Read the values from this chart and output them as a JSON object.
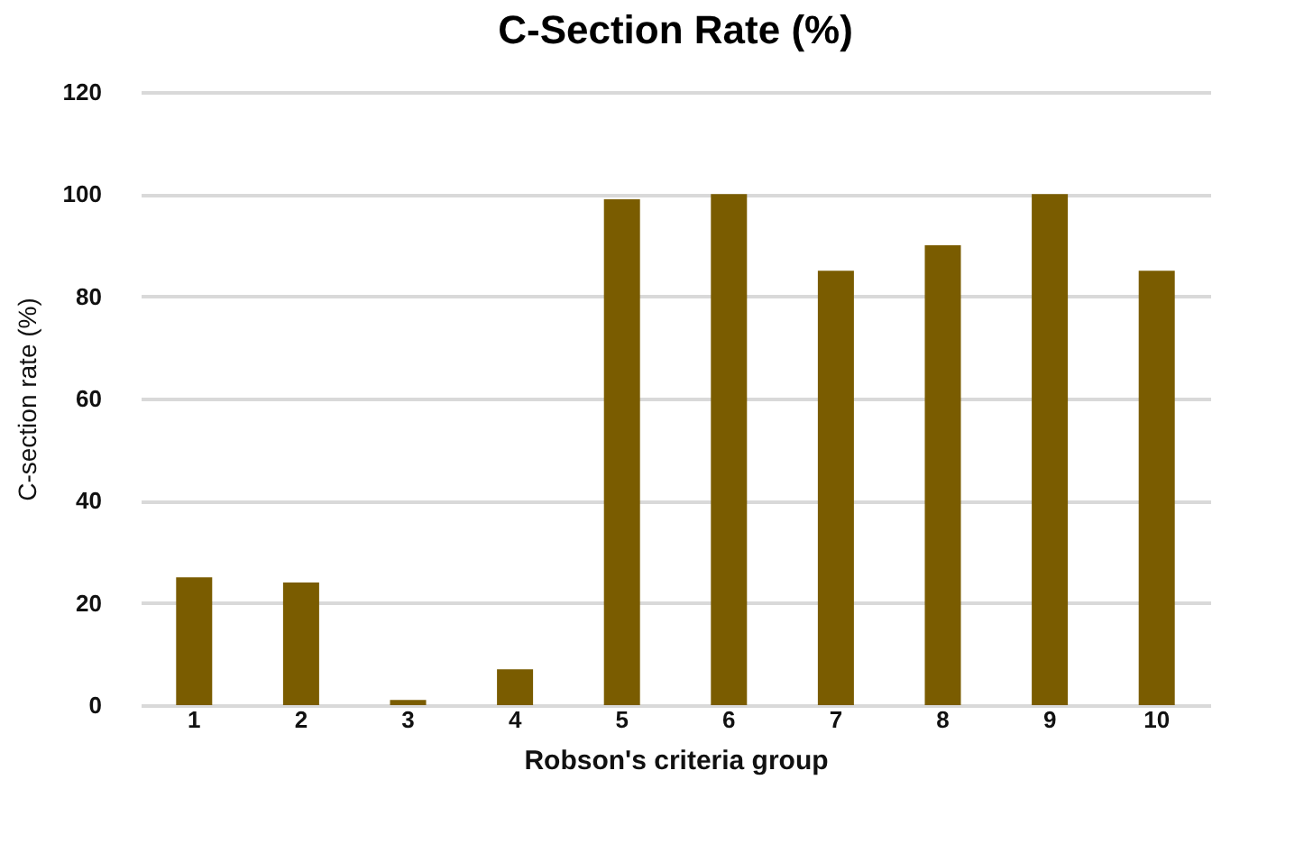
{
  "chart_data": {
    "type": "bar",
    "title": "C-Section Rate (%)",
    "xlabel": "Robson's criteria group",
    "ylabel": "C-section rate (%)",
    "categories": [
      "1",
      "2",
      "3",
      "4",
      "5",
      "6",
      "7",
      "8",
      "9",
      "10"
    ],
    "values": [
      25,
      24,
      1,
      7,
      99,
      100,
      85,
      90,
      100,
      85
    ],
    "color": "#7a5c00",
    "ylim": [
      0,
      120
    ],
    "yticks": [
      0,
      20,
      40,
      60,
      80,
      100,
      120
    ],
    "grid": "y"
  }
}
